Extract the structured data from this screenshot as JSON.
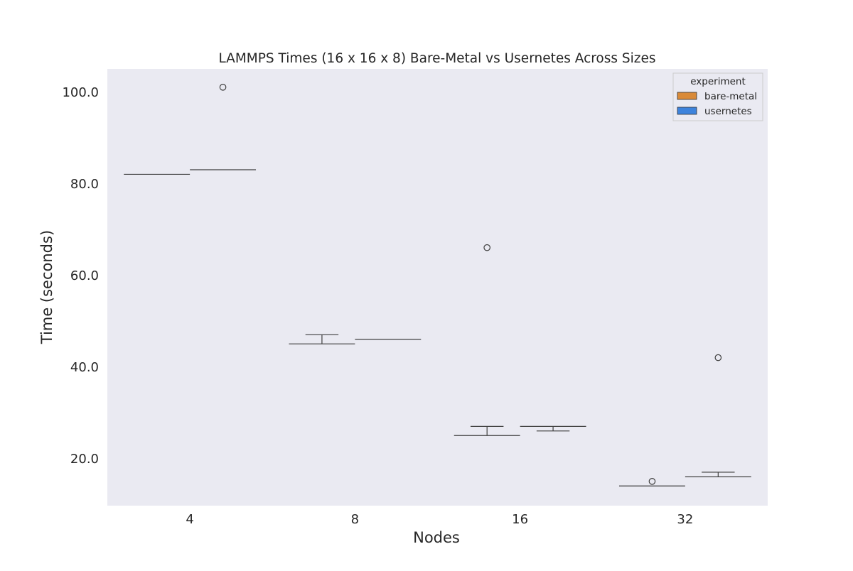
{
  "chart_data": {
    "type": "box",
    "title": "LAMMPS Times (16 x 16 x 8) Bare-Metal vs Usernetes Across Sizes",
    "xlabel": "Nodes",
    "ylabel": "Time (seconds)",
    "categories": [
      "4",
      "8",
      "16",
      "32"
    ],
    "y_ticks": [
      "20.0",
      "40.0",
      "60.0",
      "80.0",
      "100.0"
    ],
    "ylim": [
      9.7,
      105
    ],
    "grid": false,
    "legend": {
      "title": "experiment",
      "position": "top-right",
      "entries": [
        {
          "label": "bare-metal",
          "color": "#D98A38"
        },
        {
          "label": "usernetes",
          "color": "#3D83DC"
        }
      ]
    },
    "series": [
      {
        "name": "bare-metal",
        "color": "#D98A38",
        "boxes": [
          {
            "category": "4",
            "whisker_low": 82,
            "q1": 82,
            "median": 82,
            "q3": 82,
            "whisker_high": 82,
            "outliers": []
          },
          {
            "category": "8",
            "whisker_low": 45,
            "q1": 45,
            "median": 45,
            "q3": 45,
            "whisker_high": 47,
            "outliers": []
          },
          {
            "category": "16",
            "whisker_low": 25,
            "q1": 25,
            "median": 25,
            "q3": 25,
            "whisker_high": 27,
            "outliers": [
              66
            ]
          },
          {
            "category": "32",
            "whisker_low": 14,
            "q1": 14,
            "median": 14,
            "q3": 14,
            "whisker_high": 14,
            "outliers": [
              15
            ]
          }
        ]
      },
      {
        "name": "usernetes",
        "color": "#3D83DC",
        "boxes": [
          {
            "category": "4",
            "whisker_low": 83,
            "q1": 83,
            "median": 83,
            "q3": 83,
            "whisker_high": 83,
            "outliers": [
              101
            ]
          },
          {
            "category": "8",
            "whisker_low": 46,
            "q1": 46,
            "median": 46,
            "q3": 46,
            "whisker_high": 46,
            "outliers": []
          },
          {
            "category": "16",
            "whisker_low": 26,
            "q1": 27,
            "median": 27,
            "q3": 27,
            "whisker_high": 27,
            "outliers": []
          },
          {
            "category": "32",
            "whisker_low": 16,
            "q1": 16,
            "median": 16,
            "q3": 16,
            "whisker_high": 17,
            "outliers": [
              42
            ]
          }
        ]
      }
    ]
  }
}
